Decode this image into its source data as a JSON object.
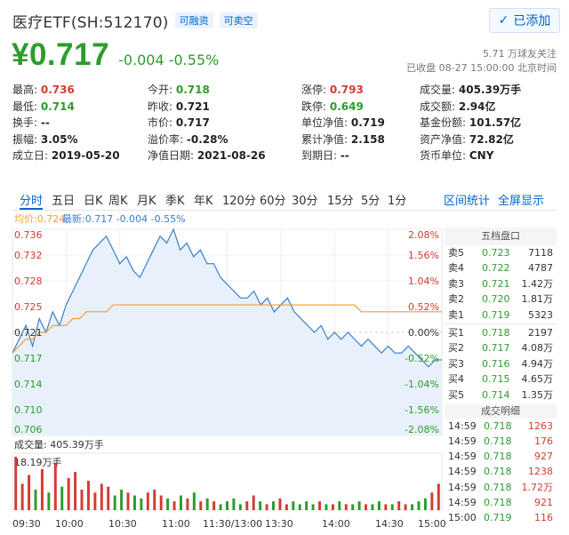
{
  "header": {
    "title": "医疗ETF(SH:512170)",
    "tags": [
      "可融资",
      "可卖空"
    ],
    "add_button": "已添加"
  },
  "quote": {
    "price": "¥0.717",
    "change": "-0.004 -0.55%",
    "followers": "5.71 万球友关注",
    "status": "已收盘 08-27 15:00:00 北京时间"
  },
  "stats": [
    [
      {
        "label": "最高:",
        "value": "0.736",
        "tone": "up"
      },
      {
        "label": "今开:",
        "value": "0.718",
        "tone": "down"
      },
      {
        "label": "涨停:",
        "value": "0.793",
        "tone": "up"
      },
      {
        "label": "成交量:",
        "value": "405.39万手",
        "tone": ""
      }
    ],
    [
      {
        "label": "最低:",
        "value": "0.714",
        "tone": "down"
      },
      {
        "label": "昨收:",
        "value": "0.721",
        "tone": ""
      },
      {
        "label": "跌停:",
        "value": "0.649",
        "tone": "down"
      },
      {
        "label": "成交额:",
        "value": "2.94亿",
        "tone": ""
      }
    ],
    [
      {
        "label": "换手:",
        "value": "--",
        "tone": ""
      },
      {
        "label": "市价:",
        "value": "0.717",
        "tone": ""
      },
      {
        "label": "单位净值:",
        "value": "0.719",
        "tone": ""
      },
      {
        "label": "基金份额:",
        "value": "101.57亿",
        "tone": ""
      }
    ],
    [
      {
        "label": "振幅:",
        "value": "3.05%",
        "tone": ""
      },
      {
        "label": "溢价率:",
        "value": "-0.28%",
        "tone": ""
      },
      {
        "label": "累计净值:",
        "value": "2.158",
        "tone": ""
      },
      {
        "label": "资产净值:",
        "value": "72.82亿",
        "tone": ""
      }
    ],
    [
      {
        "label": "成立日:",
        "value": "2019-05-20",
        "tone": ""
      },
      {
        "label": "净值日期:",
        "value": "2021-08-26",
        "tone": ""
      },
      {
        "label": "到期日:",
        "value": "--",
        "tone": ""
      },
      {
        "label": "货币单位:",
        "value": "CNY",
        "tone": ""
      }
    ]
  ],
  "tabs": [
    "分时",
    "五日",
    "日K",
    "周K",
    "月K",
    "季K",
    "年K",
    "120分",
    "60分",
    "30分",
    "15分",
    "5分",
    "1分"
  ],
  "tab_actions": [
    "区间统计",
    "全屏显示"
  ],
  "chart_data": {
    "type": "line",
    "legend": {
      "avg": "均价:0.724",
      "latest": "最新:0.717 -0.004 -0.55%"
    },
    "y_ticks_price": [
      "0.736",
      "0.732",
      "0.728",
      "0.725",
      "0.721",
      "0.717",
      "0.714",
      "0.710",
      "0.706"
    ],
    "y_ticks_pct": [
      "2.08%",
      "1.56%",
      "1.04%",
      "0.52%",
      "0.00%",
      "-0.52%",
      "-1.04%",
      "-1.56%",
      "-2.08%"
    ],
    "ylim": [
      0.706,
      0.736
    ],
    "prev_close": 0.721,
    "x_ticks": [
      "09:30",
      "10:00",
      "10:30",
      "11:00",
      "11:30/13:00",
      "13:30",
      "14:00",
      "14:30",
      "15:00"
    ],
    "price": [
      0.718,
      0.72,
      0.722,
      0.719,
      0.723,
      0.721,
      0.724,
      0.722,
      0.725,
      0.727,
      0.729,
      0.731,
      0.733,
      0.734,
      0.735,
      0.733,
      0.731,
      0.732,
      0.73,
      0.729,
      0.731,
      0.733,
      0.735,
      0.734,
      0.736,
      0.733,
      0.734,
      0.732,
      0.733,
      0.731,
      0.731,
      0.729,
      0.728,
      0.727,
      0.726,
      0.726,
      0.727,
      0.725,
      0.726,
      0.724,
      0.725,
      0.726,
      0.724,
      0.723,
      0.722,
      0.721,
      0.722,
      0.72,
      0.721,
      0.72,
      0.721,
      0.72,
      0.719,
      0.72,
      0.719,
      0.718,
      0.719,
      0.718,
      0.718,
      0.719,
      0.718,
      0.717,
      0.716,
      0.717,
      0.717
    ],
    "avg": [
      0.718,
      0.719,
      0.72,
      0.72,
      0.721,
      0.721,
      0.722,
      0.722,
      0.722,
      0.723,
      0.723,
      0.724,
      0.724,
      0.724,
      0.724,
      0.725,
      0.725,
      0.725,
      0.725,
      0.725,
      0.725,
      0.725,
      0.725,
      0.725,
      0.725,
      0.725,
      0.725,
      0.725,
      0.725,
      0.725,
      0.725,
      0.725,
      0.725,
      0.725,
      0.725,
      0.725,
      0.725,
      0.725,
      0.725,
      0.725,
      0.725,
      0.725,
      0.725,
      0.725,
      0.725,
      0.725,
      0.725,
      0.725,
      0.725,
      0.725,
      0.725,
      0.725,
      0.724,
      0.724,
      0.724,
      0.724,
      0.724,
      0.724,
      0.724,
      0.724,
      0.724,
      0.724,
      0.724,
      0.724,
      0.724
    ],
    "volume_label": "成交量: 405.39万手",
    "volume_max_label": "18.19万手",
    "volume": [
      18.2,
      9,
      12,
      7,
      14,
      6,
      16,
      8,
      11,
      13,
      7,
      10,
      6,
      9,
      8,
      5,
      7,
      6,
      5,
      4,
      6,
      7,
      5,
      4,
      3,
      5,
      4,
      6,
      3,
      4,
      3,
      2,
      3,
      4,
      2,
      3,
      5,
      3,
      2,
      3,
      4,
      2,
      3,
      2,
      3,
      2,
      3,
      2,
      2,
      3,
      2,
      2,
      3,
      2,
      2,
      3,
      2,
      2,
      3,
      2,
      2,
      3,
      4,
      6,
      9
    ]
  },
  "orderbook": {
    "title": "五档盘口",
    "rows": [
      {
        "label": "卖5",
        "price": "0.723",
        "vol": "7118"
      },
      {
        "label": "卖4",
        "price": "0.722",
        "vol": "4787"
      },
      {
        "label": "卖3",
        "price": "0.721",
        "vol": "1.42万"
      },
      {
        "label": "卖2",
        "price": "0.720",
        "vol": "1.81万"
      },
      {
        "label": "卖1",
        "price": "0.719",
        "vol": "5323"
      },
      {
        "label": "买1",
        "price": "0.718",
        "vol": "2197"
      },
      {
        "label": "买2",
        "price": "0.717",
        "vol": "4.08万"
      },
      {
        "label": "买3",
        "price": "0.716",
        "vol": "4.94万"
      },
      {
        "label": "买4",
        "price": "0.715",
        "vol": "4.65万"
      },
      {
        "label": "买5",
        "price": "0.714",
        "vol": "1.35万"
      }
    ],
    "ticks_title": "成交明细",
    "ticks": [
      {
        "time": "14:59",
        "price": "0.718",
        "vol": "1263"
      },
      {
        "time": "14:59",
        "price": "0.718",
        "vol": "176"
      },
      {
        "time": "14:59",
        "price": "0.718",
        "vol": "927"
      },
      {
        "time": "14:59",
        "price": "0.718",
        "vol": "1238"
      },
      {
        "time": "14:59",
        "price": "0.718",
        "vol": "1.72万"
      },
      {
        "time": "14:59",
        "price": "0.718",
        "vol": "921"
      },
      {
        "time": "15:00",
        "price": "0.719",
        "vol": "116"
      }
    ]
  },
  "colors": {
    "up": "#d43c33",
    "down": "#2d9c2d",
    "line": "#3a7ec9",
    "avg": "#f0a030",
    "accent": "#0066cc"
  }
}
